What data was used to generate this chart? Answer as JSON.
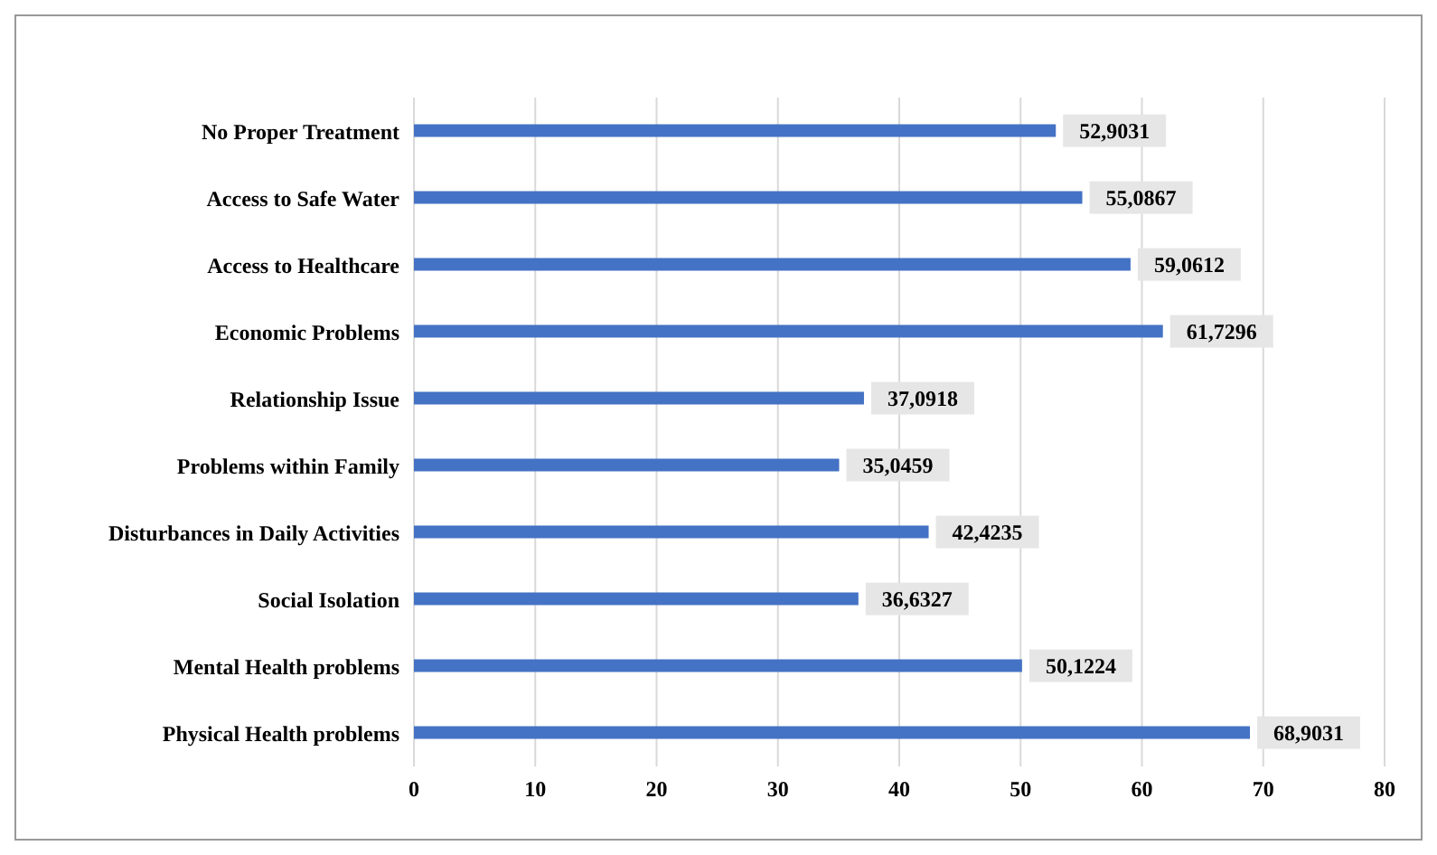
{
  "chart_data": {
    "type": "bar",
    "orientation": "horizontal",
    "categories": [
      "No Proper Treatment",
      "Access to Safe Water",
      "Access to Healthcare",
      "Economic Problems",
      "Relationship Issue",
      "Problems within Family",
      "Disturbances in Daily Activities",
      "Social Isolation",
      "Mental Health problems",
      "Physical Health problems"
    ],
    "values": [
      52.9031,
      55.0867,
      59.0612,
      61.7296,
      37.0918,
      35.0459,
      42.4235,
      36.6327,
      50.1224,
      68.9031
    ],
    "value_labels": [
      "52,9031",
      "55,0867",
      "59,0612",
      "61,7296",
      "37,0918",
      "35,0459",
      "42,4235",
      "36,6327",
      "50,1224",
      "68,9031"
    ],
    "color": "#4472c4",
    "xlim": [
      0,
      80
    ],
    "xticks": [
      0,
      10,
      20,
      30,
      40,
      50,
      60,
      70,
      80
    ],
    "grid": "x"
  }
}
